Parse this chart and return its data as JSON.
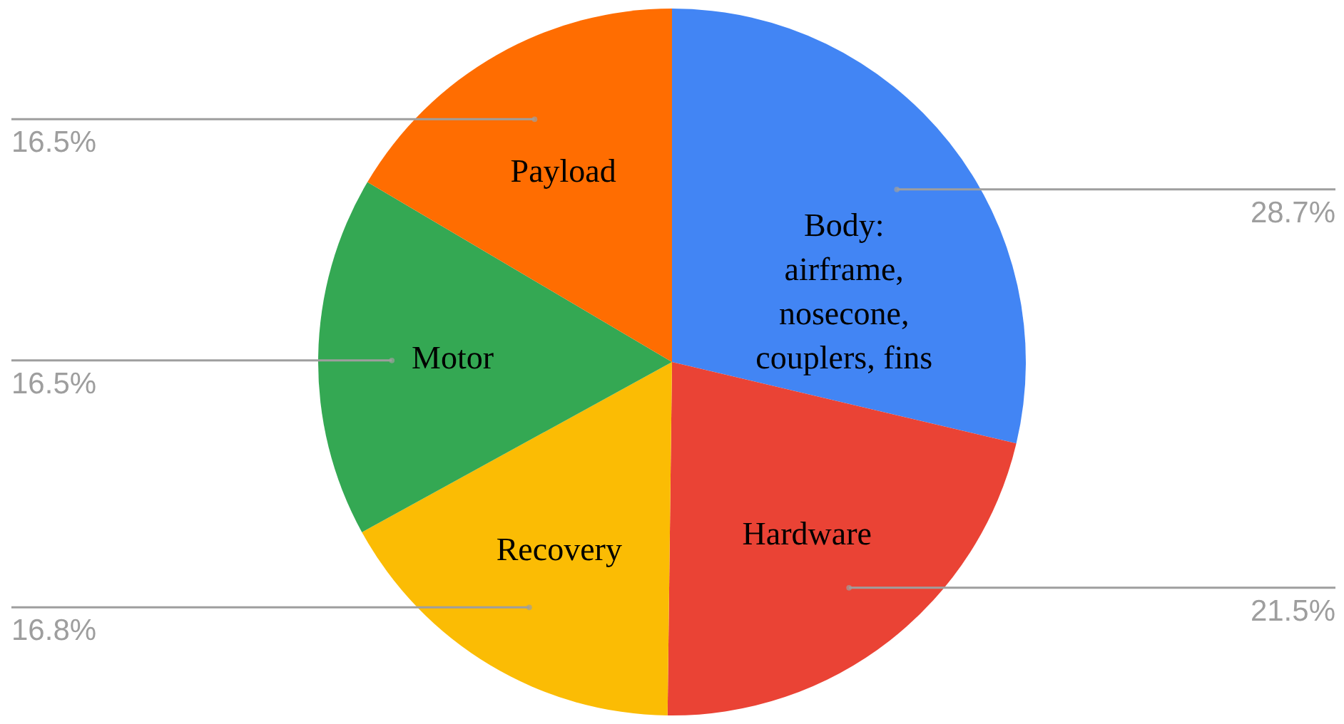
{
  "chart_data": {
    "type": "pie",
    "categories": [
      "Body: airframe, nosecone, couplers, fins",
      "Hardware",
      "Recovery",
      "Motor",
      "Payload"
    ],
    "values": [
      28.7,
      21.5,
      16.8,
      16.5,
      16.5
    ],
    "value_labels": [
      "28.7%",
      "21.5%",
      "16.8%",
      "16.5%",
      "16.5%"
    ],
    "colors": [
      "#4285f4",
      "#ea4335",
      "#fbbc04",
      "#34a853",
      "#ff6d01"
    ]
  }
}
